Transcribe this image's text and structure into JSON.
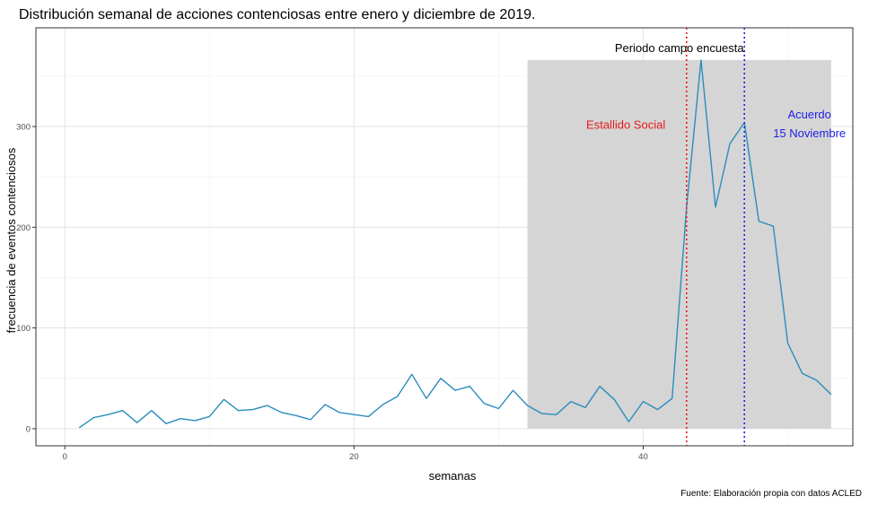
{
  "chart_data": {
    "type": "line",
    "title": "Distribución semanal de acciones contenciosas entre enero y diciembre de 2019.",
    "xlabel": "semanas",
    "ylabel": "frecuencia de eventos contenciosos",
    "caption": "Fuente: Elaboración propia con datos ACLED",
    "xlim": [
      -2,
      54.5
    ],
    "ylim": [
      -17,
      398
    ],
    "x_ticks": [
      0,
      20,
      40
    ],
    "y_ticks": [
      0,
      100,
      200,
      300
    ],
    "grid": true,
    "line_color": "#2b8cbe",
    "shaded_region": {
      "x_start": 32,
      "x_end": 53,
      "y_start": 0,
      "y_end": 366,
      "label": "Periodo campo encuesta",
      "color": "#d3d3d3"
    },
    "vlines": [
      {
        "x": 43,
        "color": "#e41a1c",
        "label_lines": [
          "Estallido Social"
        ],
        "label_x": 38.8,
        "label_y": 298
      },
      {
        "x": 47,
        "color": "#1f1fe6",
        "label_lines": [
          "Acuerdo",
          "15 Noviembre"
        ],
        "label_x": 51.5,
        "label_y": 308
      }
    ],
    "series": [
      {
        "x": [
          1,
          2,
          3,
          4,
          5,
          6,
          7,
          8,
          9,
          10,
          11,
          12,
          13,
          14,
          15,
          16,
          17,
          18,
          19,
          20,
          21,
          22,
          23,
          24,
          25,
          26,
          27,
          28,
          29,
          30,
          31,
          32,
          33,
          34,
          35,
          36,
          37,
          38,
          39,
          40,
          41,
          42,
          43,
          44,
          45,
          46,
          47,
          48,
          49,
          50,
          51,
          52,
          53
        ],
        "values": [
          1,
          11,
          14,
          18,
          6,
          18,
          5,
          10,
          8,
          12,
          29,
          18,
          19,
          23,
          16,
          13,
          9,
          24,
          16,
          14,
          12,
          24,
          32,
          54,
          30,
          50,
          38,
          42,
          25,
          20,
          38,
          23,
          15,
          14,
          27,
          21,
          42,
          29,
          7,
          27,
          19,
          30,
          220,
          366,
          220,
          283,
          304,
          206,
          201,
          85,
          55,
          48,
          34
        ]
      }
    ]
  }
}
